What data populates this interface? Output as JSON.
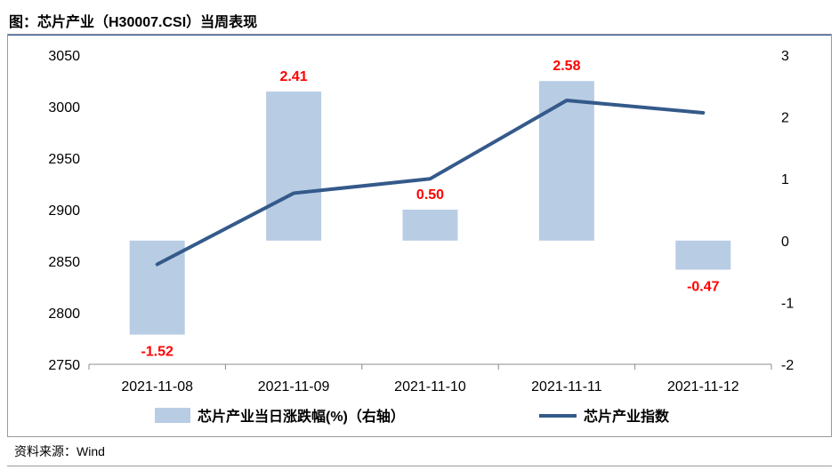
{
  "header": {
    "title": "图：芯片产业（H30007.CSI）当周表现"
  },
  "footer": {
    "source": "资料来源：Wind"
  },
  "colors": {
    "bar": "#b8cce4",
    "line": "#345a8a",
    "label": "#ff0000",
    "title_rule": "#2e5b9a"
  },
  "chart_data": {
    "type": "bar",
    "title": "",
    "categories": [
      "2021-11-08",
      "2021-11-09",
      "2021-11-10",
      "2021-11-11",
      "2021-11-12"
    ],
    "series": [
      {
        "name": "芯片产业当日涨跌幅(%)（右轴）",
        "type": "bar",
        "axis": "right",
        "values": [
          -1.52,
          2.41,
          0.5,
          2.58,
          -0.47
        ],
        "labels": [
          "-1.52",
          "2.41",
          "0.50",
          "2.58",
          "-0.47"
        ]
      },
      {
        "name": "芯片产业指数",
        "type": "line",
        "axis": "left",
        "values": [
          2847,
          2916,
          2930,
          3006,
          2994
        ]
      }
    ],
    "left_axis": {
      "range": [
        2750,
        3050
      ],
      "ticks": [
        "2750",
        "2800",
        "2850",
        "2900",
        "2950",
        "3000",
        "3050"
      ]
    },
    "right_axis": {
      "range": [
        -2,
        3
      ],
      "ticks": [
        "-2",
        "-1",
        "0",
        "1",
        "2",
        "3"
      ]
    },
    "grid": false,
    "legend_position": "bottom"
  }
}
